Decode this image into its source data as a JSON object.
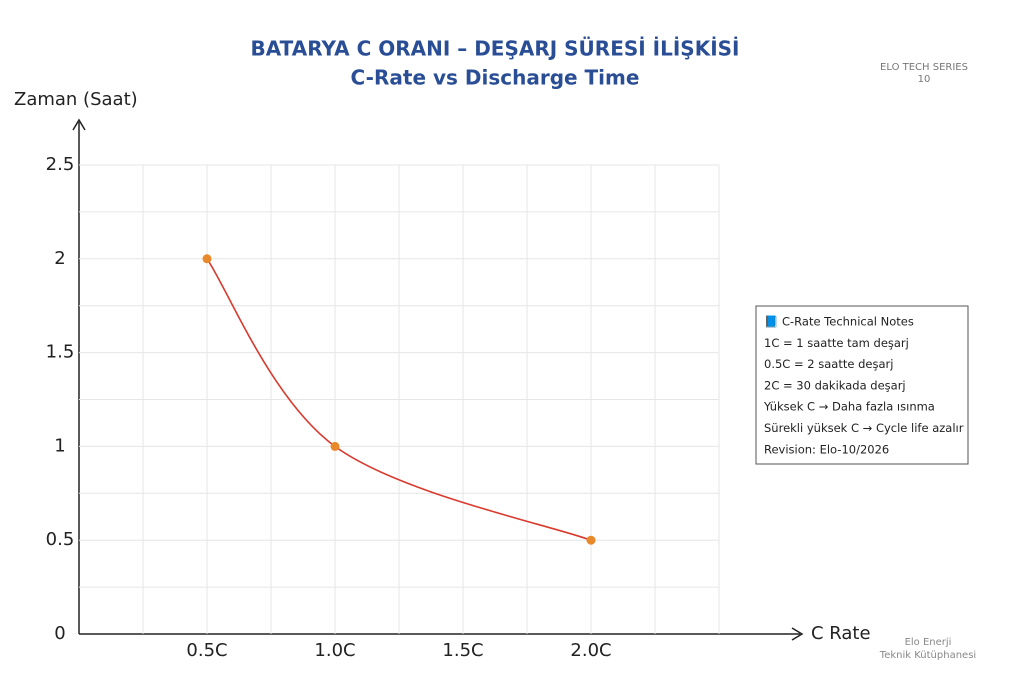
{
  "chart_data": {
    "type": "line",
    "title": "BATARYA C ORANI – DEŞARJ SÜRESİ İLİŞKİSİ",
    "subtitle": "C-Rate vs Discharge Time",
    "xlabel": "C Rate",
    "ylabel": "Zaman (Saat)",
    "x": [
      0.5,
      1.0,
      2.0
    ],
    "series": [
      {
        "values": [
          2,
          1,
          0.5
        ],
        "color": "#d93a2e",
        "marker_color": "#e8892b"
      }
    ],
    "xlim": [
      0,
      2.5
    ],
    "xticks": [
      {
        "value": 0.5,
        "label": "0.5C"
      },
      {
        "value": 1.0,
        "label": "1.0C"
      },
      {
        "value": 1.5,
        "label": "1.5C"
      },
      {
        "value": 2.0,
        "label": "2.0C"
      }
    ],
    "ylim": [
      0,
      2.5
    ],
    "yticks": [
      0,
      0.5,
      1,
      1.5,
      2,
      2.5
    ],
    "xgrid": [
      0.25,
      0.5,
      0.75,
      1.0,
      1.25,
      1.5,
      1.75,
      2.0,
      2.25,
      2.5
    ],
    "ygrid": [
      0.25,
      0.5,
      0.75,
      1.0,
      1.25,
      1.5,
      1.75,
      2.0,
      2.25,
      2.5
    ],
    "grid": true,
    "smooth": true,
    "notes": [
      "📘 C-Rate Technical Notes",
      "1C = 1 saatte tam deşarj",
      "0.5C = 2 saatte deşarj",
      "2C = 30 dakikada deşarj",
      "Yüksek C → Daha fazla ısınma",
      "Sürekli yüksek C → Cycle life azalır",
      "Revision: Elo-10/2026"
    ],
    "series_label": [
      "ELO TECH SERIES",
      "10"
    ],
    "footer": [
      "Elo Enerji",
      "Teknik Kütüphanesi"
    ]
  }
}
